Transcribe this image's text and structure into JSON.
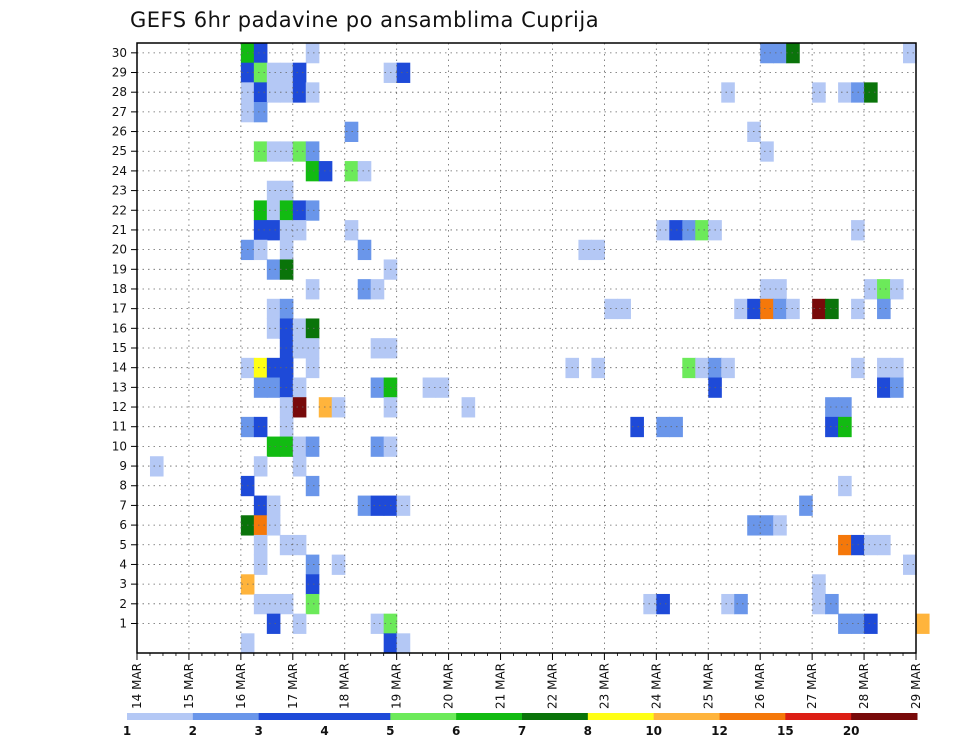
{
  "chart_data": {
    "type": "heatmap",
    "title": "GEFS 6hr padavine po ansamblima Cuprija",
    "xlabel": "",
    "ylabel": "",
    "x_tick_labels": [
      "14 MAR",
      "15 MAR",
      "16 MAR",
      "17 MAR",
      "18 MAR",
      "19 MAR",
      "20 MAR",
      "21 MAR",
      "22 MAR",
      "23 MAR",
      "24 MAR",
      "25 MAR",
      "26 MAR",
      "27 MAR",
      "28 MAR",
      "29 MAR"
    ],
    "x_range_days": [
      14,
      29
    ],
    "steps_per_day": 4,
    "y_tick_labels": [
      "1",
      "2",
      "3",
      "4",
      "5",
      "6",
      "7",
      "8",
      "9",
      "10",
      "11",
      "12",
      "13",
      "14",
      "15",
      "16",
      "17",
      "18",
      "19",
      "20",
      "21",
      "22",
      "23",
      "24",
      "25",
      "26",
      "27",
      "28",
      "29",
      "30"
    ],
    "y_range": [
      0,
      30
    ],
    "grid": true,
    "colorbar": {
      "labels": [
        "1",
        "2",
        "3",
        "4",
        "5",
        "6",
        "7",
        "8",
        "10",
        "12",
        "15",
        "20"
      ],
      "colors": [
        "#b4c8f5",
        "#6a96ea",
        "#1e4ad8",
        "#1e4ad8",
        "#6cea5a",
        "#12bb12",
        "#0a740a",
        "#ffff14",
        "#ffb43c",
        "#f5780a",
        "#dc1e14",
        "#780a0a"
      ]
    },
    "cells_encoding": "[ensemble_member, time_step_from_14_MAR_00z, color_class]",
    "cells": [
      [
        30,
        8,
        5
      ],
      [
        30,
        9,
        2
      ],
      [
        30,
        13,
        0
      ],
      [
        30,
        48,
        1
      ],
      [
        30,
        49,
        1
      ],
      [
        30,
        50,
        6
      ],
      [
        30,
        59,
        0
      ],
      [
        29,
        8,
        2
      ],
      [
        29,
        9,
        4
      ],
      [
        29,
        10,
        0
      ],
      [
        29,
        11,
        0
      ],
      [
        29,
        12,
        2
      ],
      [
        29,
        19,
        0
      ],
      [
        29,
        20,
        2
      ],
      [
        28,
        8,
        0
      ],
      [
        28,
        9,
        2
      ],
      [
        28,
        10,
        0
      ],
      [
        28,
        11,
        0
      ],
      [
        28,
        12,
        2
      ],
      [
        28,
        13,
        0
      ],
      [
        28,
        45,
        0
      ],
      [
        28,
        52,
        0
      ],
      [
        28,
        54,
        0
      ],
      [
        28,
        55,
        1
      ],
      [
        28,
        56,
        6
      ],
      [
        27,
        8,
        0
      ],
      [
        27,
        9,
        1
      ],
      [
        26,
        16,
        1
      ],
      [
        26,
        47,
        0
      ],
      [
        25,
        9,
        4
      ],
      [
        25,
        10,
        0
      ],
      [
        25,
        11,
        0
      ],
      [
        25,
        12,
        4
      ],
      [
        25,
        13,
        1
      ],
      [
        25,
        48,
        0
      ],
      [
        24,
        13,
        5
      ],
      [
        24,
        14,
        2
      ],
      [
        24,
        16,
        4
      ],
      [
        24,
        17,
        0
      ],
      [
        23,
        10,
        0
      ],
      [
        23,
        11,
        0
      ],
      [
        22,
        9,
        5
      ],
      [
        22,
        10,
        0
      ],
      [
        22,
        11,
        5
      ],
      [
        22,
        12,
        2
      ],
      [
        22,
        13,
        1
      ],
      [
        21,
        9,
        2
      ],
      [
        21,
        10,
        2
      ],
      [
        21,
        11,
        0
      ],
      [
        21,
        12,
        0
      ],
      [
        21,
        16,
        0
      ],
      [
        21,
        40,
        0
      ],
      [
        21,
        41,
        2
      ],
      [
        21,
        42,
        1
      ],
      [
        21,
        43,
        4
      ],
      [
        21,
        44,
        0
      ],
      [
        21,
        55,
        0
      ],
      [
        20,
        8,
        1
      ],
      [
        20,
        9,
        0
      ],
      [
        20,
        11,
        0
      ],
      [
        20,
        17,
        1
      ],
      [
        20,
        34,
        0
      ],
      [
        20,
        35,
        0
      ],
      [
        19,
        10,
        1
      ],
      [
        19,
        11,
        6
      ],
      [
        19,
        19,
        0
      ],
      [
        18,
        13,
        0
      ],
      [
        18,
        17,
        1
      ],
      [
        18,
        18,
        0
      ],
      [
        18,
        48,
        0
      ],
      [
        18,
        49,
        0
      ],
      [
        18,
        56,
        0
      ],
      [
        18,
        57,
        4
      ],
      [
        18,
        58,
        0
      ],
      [
        17,
        10,
        0
      ],
      [
        17,
        11,
        1
      ],
      [
        17,
        36,
        0
      ],
      [
        17,
        37,
        0
      ],
      [
        17,
        46,
        0
      ],
      [
        17,
        47,
        2
      ],
      [
        17,
        48,
        9
      ],
      [
        17,
        49,
        1
      ],
      [
        17,
        50,
        0
      ],
      [
        17,
        52,
        11
      ],
      [
        17,
        53,
        6
      ],
      [
        17,
        55,
        0
      ],
      [
        17,
        57,
        1
      ],
      [
        16,
        10,
        0
      ],
      [
        16,
        11,
        2
      ],
      [
        16,
        12,
        0
      ],
      [
        16,
        13,
        6
      ],
      [
        15,
        11,
        2
      ],
      [
        15,
        12,
        0
      ],
      [
        15,
        13,
        0
      ],
      [
        15,
        18,
        0
      ],
      [
        15,
        19,
        0
      ],
      [
        14,
        8,
        0
      ],
      [
        14,
        9,
        7
      ],
      [
        14,
        10,
        2
      ],
      [
        14,
        11,
        2
      ],
      [
        14,
        13,
        0
      ],
      [
        14,
        33,
        0
      ],
      [
        14,
        35,
        0
      ],
      [
        14,
        42,
        4
      ],
      [
        14,
        43,
        0
      ],
      [
        14,
        44,
        1
      ],
      [
        14,
        45,
        0
      ],
      [
        14,
        55,
        0
      ],
      [
        14,
        57,
        0
      ],
      [
        14,
        58,
        0
      ],
      [
        13,
        9,
        1
      ],
      [
        13,
        10,
        1
      ],
      [
        13,
        11,
        2
      ],
      [
        13,
        12,
        0
      ],
      [
        13,
        18,
        1
      ],
      [
        13,
        19,
        5
      ],
      [
        13,
        22,
        0
      ],
      [
        13,
        23,
        0
      ],
      [
        13,
        44,
        2
      ],
      [
        13,
        57,
        2
      ],
      [
        13,
        58,
        1
      ],
      [
        12,
        11,
        0
      ],
      [
        12,
        12,
        11
      ],
      [
        12,
        14,
        8
      ],
      [
        12,
        15,
        0
      ],
      [
        12,
        19,
        0
      ],
      [
        12,
        25,
        0
      ],
      [
        12,
        53,
        1
      ],
      [
        12,
        54,
        1
      ],
      [
        11,
        8,
        1
      ],
      [
        11,
        9,
        2
      ],
      [
        11,
        11,
        0
      ],
      [
        11,
        38,
        2
      ],
      [
        11,
        40,
        1
      ],
      [
        11,
        41,
        1
      ],
      [
        11,
        53,
        2
      ],
      [
        11,
        54,
        5
      ],
      [
        10,
        10,
        5
      ],
      [
        10,
        11,
        5
      ],
      [
        10,
        12,
        0
      ],
      [
        10,
        13,
        1
      ],
      [
        10,
        18,
        1
      ],
      [
        10,
        19,
        0
      ],
      [
        9,
        1,
        0
      ],
      [
        9,
        9,
        0
      ],
      [
        9,
        12,
        0
      ],
      [
        8,
        8,
        2
      ],
      [
        8,
        13,
        1
      ],
      [
        8,
        54,
        0
      ],
      [
        7,
        9,
        2
      ],
      [
        7,
        10,
        0
      ],
      [
        7,
        17,
        1
      ],
      [
        7,
        18,
        2
      ],
      [
        7,
        19,
        2
      ],
      [
        7,
        20,
        0
      ],
      [
        7,
        51,
        1
      ],
      [
        6,
        8,
        6
      ],
      [
        6,
        9,
        9
      ],
      [
        6,
        10,
        0
      ],
      [
        6,
        47,
        1
      ],
      [
        6,
        48,
        1
      ],
      [
        6,
        49,
        0
      ],
      [
        5,
        9,
        0
      ],
      [
        5,
        11,
        0
      ],
      [
        5,
        12,
        0
      ],
      [
        5,
        54,
        9
      ],
      [
        5,
        55,
        2
      ],
      [
        5,
        56,
        0
      ],
      [
        5,
        57,
        0
      ],
      [
        4,
        9,
        0
      ],
      [
        4,
        13,
        1
      ],
      [
        4,
        15,
        0
      ],
      [
        4,
        59,
        0
      ],
      [
        3,
        8,
        8
      ],
      [
        3,
        13,
        2
      ],
      [
        3,
        52,
        0
      ],
      [
        2,
        9,
        0
      ],
      [
        2,
        10,
        0
      ],
      [
        2,
        11,
        0
      ],
      [
        2,
        13,
        4
      ],
      [
        2,
        39,
        0
      ],
      [
        2,
        40,
        2
      ],
      [
        2,
        45,
        0
      ],
      [
        2,
        46,
        1
      ],
      [
        2,
        52,
        0
      ],
      [
        2,
        53,
        1
      ],
      [
        1,
        10,
        2
      ],
      [
        1,
        12,
        0
      ],
      [
        1,
        18,
        0
      ],
      [
        1,
        19,
        4
      ],
      [
        1,
        54,
        1
      ],
      [
        1,
        55,
        1
      ],
      [
        1,
        56,
        2
      ],
      [
        1,
        60,
        8
      ],
      [
        0,
        8,
        0
      ],
      [
        0,
        19,
        2
      ],
      [
        0,
        20,
        0
      ]
    ]
  }
}
